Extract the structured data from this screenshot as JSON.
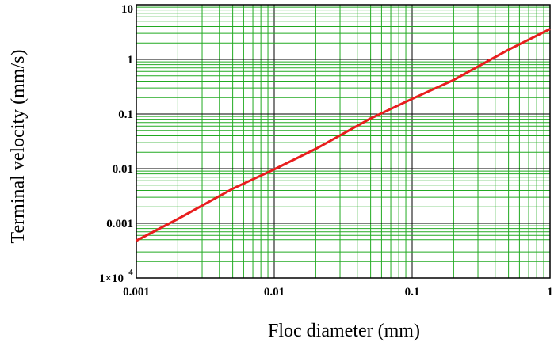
{
  "chart_data": {
    "type": "line",
    "xlabel": "Floc diameter (mm)",
    "ylabel": "Terminal velocity (mm/s)",
    "x_scale": "log",
    "y_scale": "log",
    "xlim": [
      0.001,
      1
    ],
    "ylim": [
      0.0001,
      10
    ],
    "x_ticks": [
      {
        "value": 0.001,
        "label": "0.001"
      },
      {
        "value": 0.01,
        "label": "0.01"
      },
      {
        "value": 0.1,
        "label": "0.1"
      },
      {
        "value": 1,
        "label": "1"
      }
    ],
    "y_ticks": [
      {
        "value": 0.0001,
        "label": "1×10",
        "sup": "−4"
      },
      {
        "value": 0.001,
        "label": "0.001"
      },
      {
        "value": 0.01,
        "label": "0.01"
      },
      {
        "value": 0.1,
        "label": "0.1"
      },
      {
        "value": 1,
        "label": "1"
      },
      {
        "value": 10,
        "label": "10"
      }
    ],
    "grid": true,
    "series": [
      {
        "color": "#e81e1e",
        "x": [
          0.001,
          0.002,
          0.005,
          0.01,
          0.02,
          0.05,
          0.1,
          0.2,
          0.5,
          1
        ],
        "y": [
          0.00048,
          0.0012,
          0.0043,
          0.0097,
          0.023,
          0.083,
          0.19,
          0.42,
          1.5,
          3.6
        ]
      }
    ],
    "colors": {
      "grid": "#22aa22",
      "axis": "#000000",
      "line": "#e81e1e"
    }
  }
}
